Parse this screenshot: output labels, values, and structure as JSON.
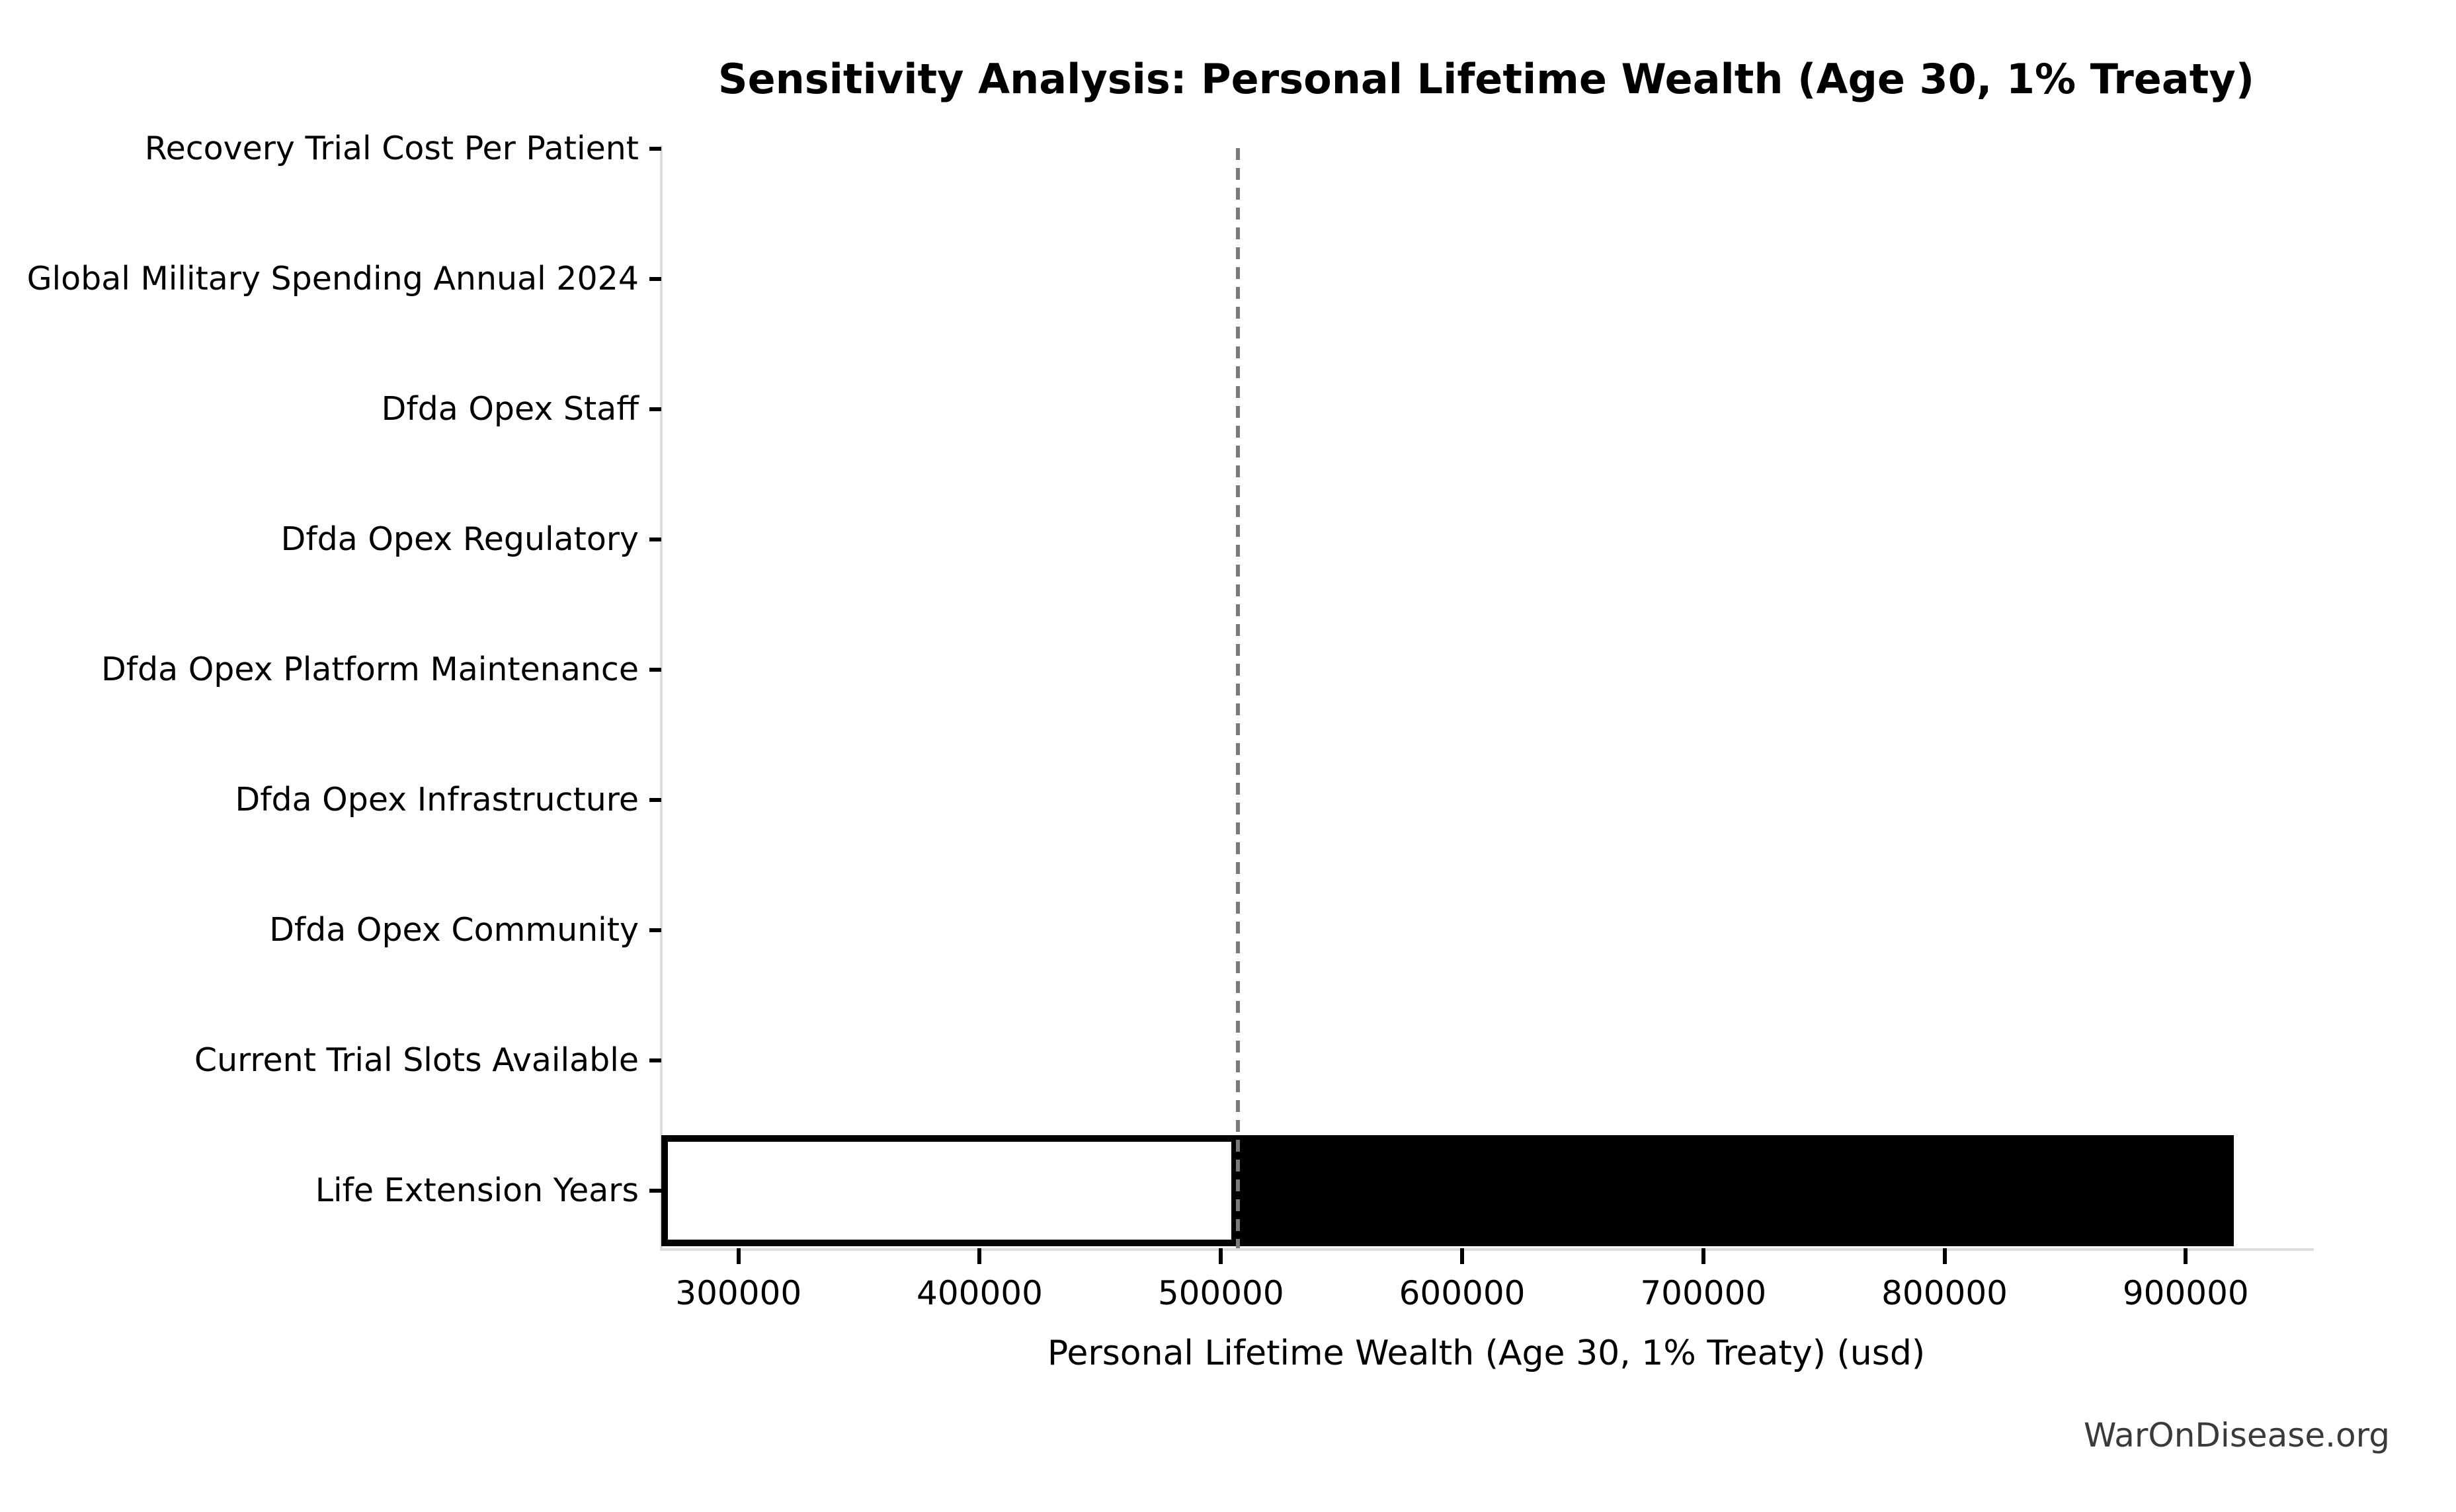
{
  "title": "Sensitivity Analysis: Personal Lifetime Wealth (Age 30, 1% Treaty)",
  "watermark": "WarOnDisease.org",
  "chart_data": {
    "type": "bar",
    "subtype": "tornado-sensitivity-horizontal",
    "title": "Sensitivity Analysis: Personal Lifetime Wealth (Age 30, 1% Treaty)",
    "xlabel": "Personal Lifetime Wealth (Age 30, 1% Treaty) (usd)",
    "ylabel": "",
    "categories": [
      "Recovery Trial Cost Per Patient",
      "Global Military Spending Annual 2024",
      "Dfda Opex Staff",
      "Dfda Opex Regulatory",
      "Dfda Opex Platform Maintenance",
      "Dfda Opex Infrastructure",
      "Dfda Opex Community",
      "Current Trial Slots Available",
      "Life Extension Years"
    ],
    "base_value": 507000,
    "bars": [
      {
        "category": "Recovery Trial Cost Per Patient",
        "low": 507000,
        "high": 507000
      },
      {
        "category": "Global Military Spending Annual 2024",
        "low": 507000,
        "high": 507000
      },
      {
        "category": "Dfda Opex Staff",
        "low": 507000,
        "high": 507000
      },
      {
        "category": "Dfda Opex Regulatory",
        "low": 507000,
        "high": 507000
      },
      {
        "category": "Dfda Opex Platform Maintenance",
        "low": 507000,
        "high": 507000
      },
      {
        "category": "Dfda Opex Infrastructure",
        "low": 507000,
        "high": 507000
      },
      {
        "category": "Dfda Opex Community",
        "low": 507000,
        "high": 507000
      },
      {
        "category": "Current Trial Slots Available",
        "low": 507000,
        "high": 507000
      },
      {
        "category": "Life Extension Years",
        "low": 268000,
        "high": 920000
      }
    ],
    "x_ticks": [
      300000,
      400000,
      500000,
      600000,
      700000,
      800000,
      900000
    ],
    "xlim": [
      268000,
      952000
    ],
    "grid": false,
    "legend": null,
    "baseline_style": "dashed-vertical",
    "colors": {
      "bar_low_fill": "#ffffff",
      "bar_high_fill": "#000000",
      "bar_edge": "#000000",
      "baseline_dash": "#7a7a7a",
      "spine": "#dcdcdc",
      "tick": "#000000",
      "text": "#000000",
      "watermark_text": "#3a3a3a",
      "background": "#ffffff"
    }
  }
}
